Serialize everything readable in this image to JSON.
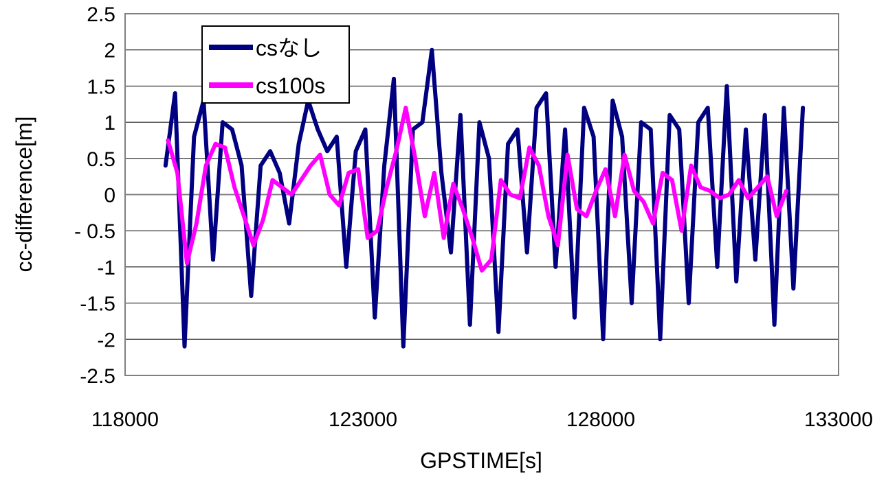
{
  "chart_data": {
    "type": "line",
    "title": "",
    "xlabel": "GPSTIME[s]",
    "ylabel": "cc-difference[m]",
    "xlim": [
      118000,
      133000
    ],
    "ylim": [
      -2.5,
      2.5
    ],
    "xticks": [
      118000,
      123000,
      128000,
      133000
    ],
    "xtick_labels": [
      "118000",
      "123000",
      "128000",
      "133000"
    ],
    "yticks": [
      2.5,
      2,
      1.5,
      1,
      0.5,
      0,
      -0.5,
      -1,
      -1.5,
      -2,
      -2.5
    ],
    "ytick_labels": [
      "2.5",
      "2",
      "1.5",
      "1",
      "0.5",
      "0",
      "- 0.5",
      "-1",
      "-1.5",
      "-2",
      "-2.5"
    ],
    "grid": "horizontal",
    "legend_position": "top-left",
    "series": [
      {
        "name": "csなし",
        "color": "#000080",
        "x": [
          118850,
          119050,
          119250,
          119450,
          119650,
          119850,
          120050,
          120250,
          120450,
          120650,
          120850,
          121050,
          121250,
          121450,
          121650,
          121850,
          122050,
          122250,
          122450,
          122650,
          122850,
          123050,
          123250,
          123450,
          123650,
          123850,
          124050,
          124250,
          124450,
          124650,
          124850,
          125050,
          125250,
          125450,
          125650,
          125850,
          126050,
          126250,
          126450,
          126650,
          126850,
          127050,
          127250,
          127450,
          127650,
          127850,
          128050,
          128250,
          128450,
          128650,
          128850,
          129050,
          129250,
          129450,
          129650,
          129850,
          130050,
          130250,
          130450,
          130650,
          130850,
          131050,
          131250,
          131450,
          131650,
          131850,
          132050,
          132250
        ],
        "y": [
          0.4,
          1.4,
          -2.1,
          0.8,
          1.3,
          -0.9,
          1.0,
          0.9,
          0.4,
          -1.4,
          0.4,
          0.6,
          0.3,
          -0.4,
          0.7,
          1.3,
          0.9,
          0.6,
          0.8,
          -1.0,
          0.6,
          0.9,
          -1.7,
          0.4,
          1.6,
          -2.1,
          0.9,
          1.0,
          2.0,
          0.3,
          -0.8,
          1.1,
          -1.8,
          1.0,
          0.5,
          -1.9,
          0.7,
          0.9,
          -0.8,
          1.2,
          1.4,
          -1.0,
          0.9,
          -1.7,
          1.2,
          0.8,
          -2.0,
          1.3,
          0.8,
          -1.5,
          1.0,
          0.9,
          -2.0,
          1.1,
          0.9,
          -1.5,
          1.0,
          1.2,
          -1.0,
          1.5,
          -1.2,
          0.9,
          -0.9,
          1.1,
          -1.8,
          1.2,
          -1.3,
          1.2
        ]
      },
      {
        "name": "cs100s",
        "color": "#ff00ff",
        "x": [
          118900,
          119100,
          119300,
          119500,
          119700,
          119900,
          120100,
          120300,
          120500,
          120700,
          120900,
          121100,
          121300,
          121500,
          121700,
          121900,
          122100,
          122300,
          122500,
          122700,
          122900,
          123100,
          123300,
          123500,
          123700,
          123900,
          124100,
          124300,
          124500,
          124700,
          124900,
          125100,
          125300,
          125500,
          125700,
          125900,
          126100,
          126300,
          126500,
          126700,
          126900,
          127100,
          127300,
          127500,
          127700,
          127900,
          128100,
          128300,
          128500,
          128700,
          128900,
          129100,
          129300,
          129500,
          129700,
          129900,
          130100,
          130300,
          130500,
          130700,
          130900,
          131100,
          131300,
          131500,
          131700,
          131900
        ],
        "y": [
          0.75,
          0.3,
          -0.95,
          -0.4,
          0.4,
          0.7,
          0.65,
          0.1,
          -0.3,
          -0.7,
          -0.35,
          0.2,
          0.1,
          0.0,
          0.2,
          0.4,
          0.55,
          0.0,
          -0.15,
          0.3,
          0.35,
          -0.6,
          -0.5,
          0.1,
          0.6,
          1.2,
          0.5,
          -0.3,
          0.3,
          -0.6,
          0.15,
          -0.2,
          -0.6,
          -1.05,
          -0.9,
          0.2,
          0.0,
          -0.05,
          0.65,
          0.4,
          -0.3,
          -0.7,
          0.55,
          -0.2,
          -0.3,
          0.05,
          0.35,
          -0.3,
          0.55,
          0.05,
          -0.1,
          -0.4,
          0.3,
          0.2,
          -0.5,
          0.4,
          0.1,
          0.05,
          -0.05,
          0.0,
          0.2,
          -0.05,
          0.1,
          0.25,
          -0.3,
          0.05
        ]
      }
    ]
  }
}
